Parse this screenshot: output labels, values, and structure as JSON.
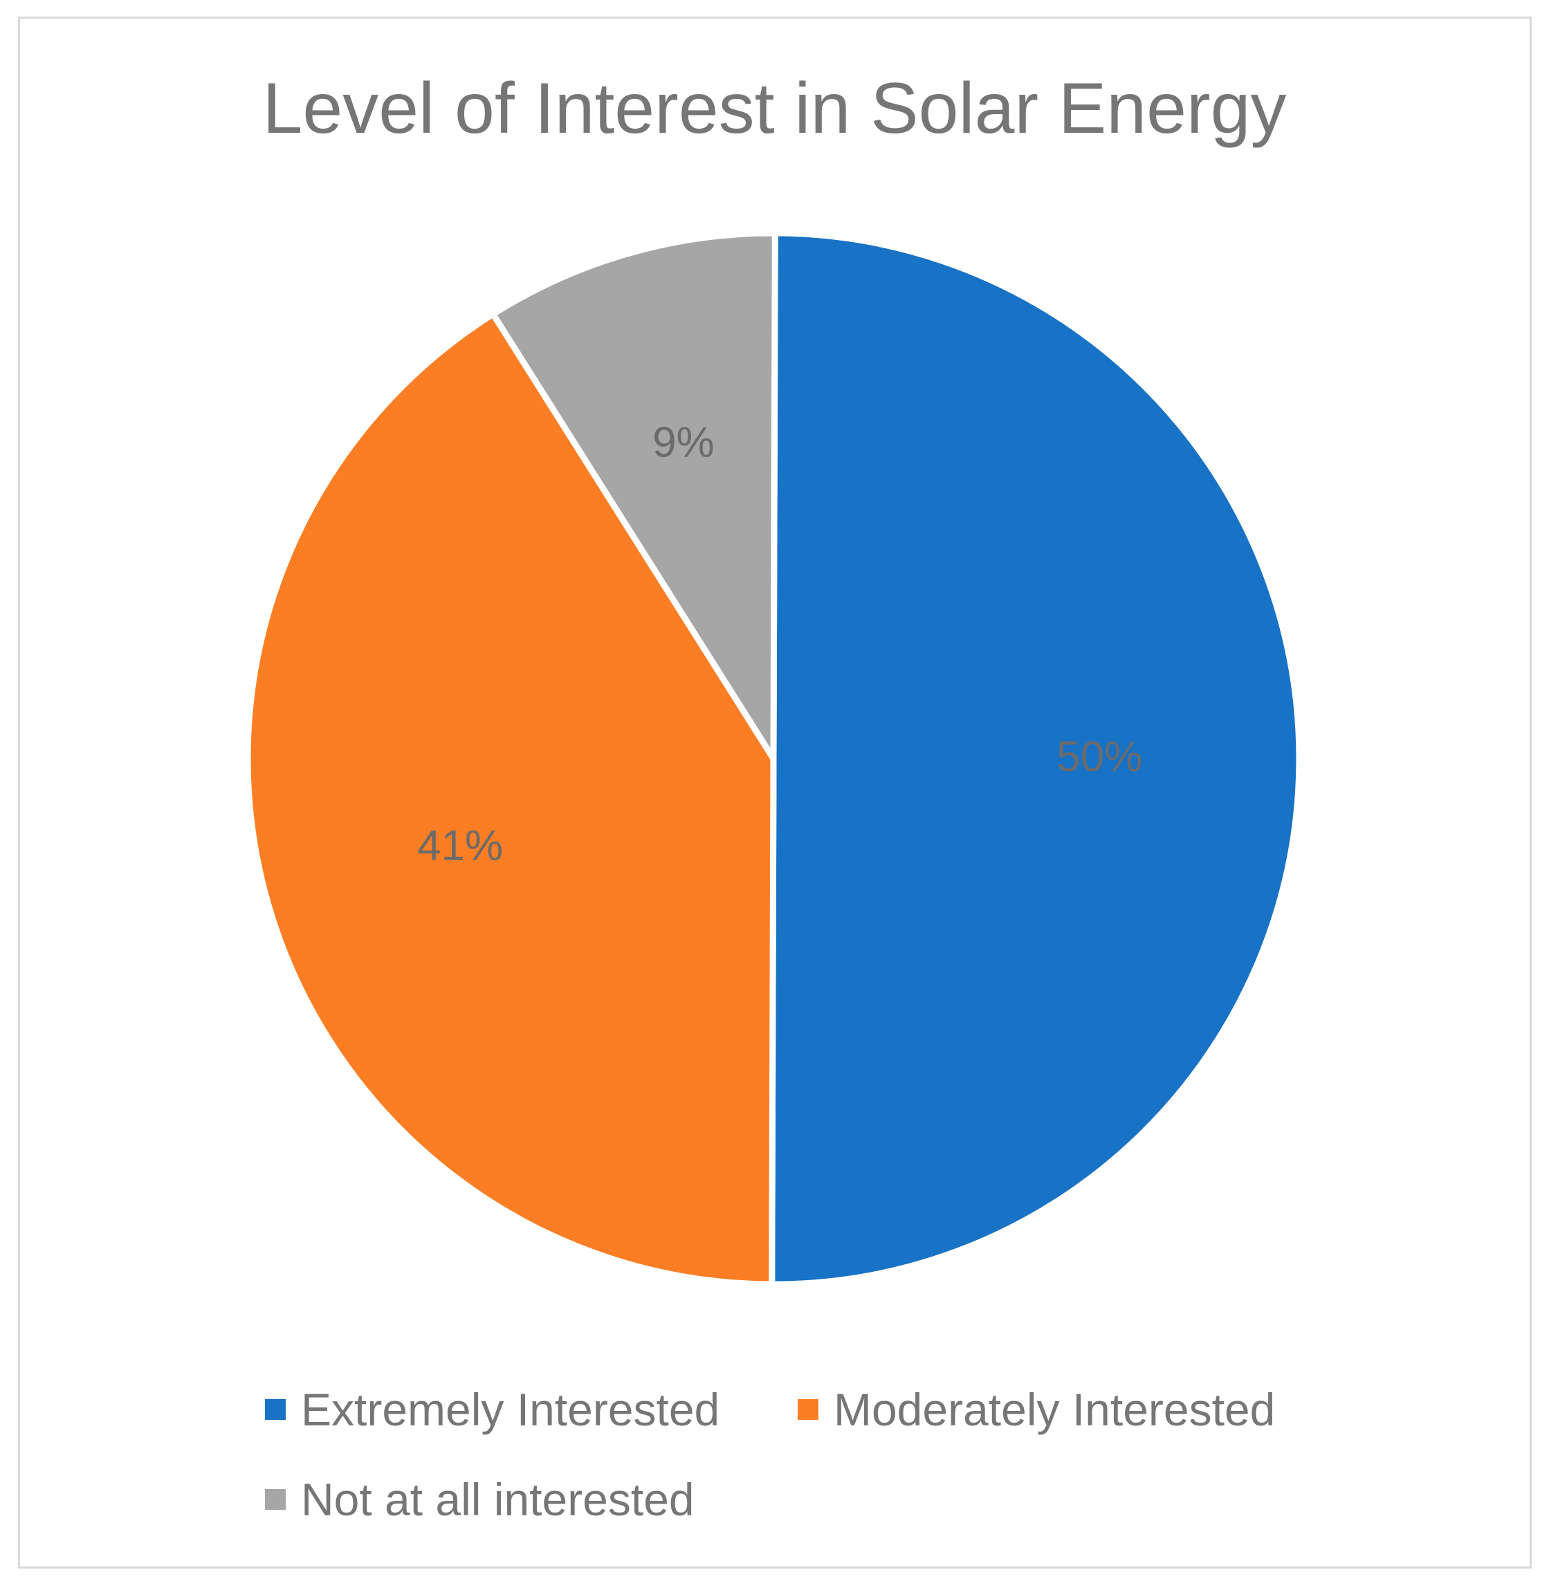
{
  "chart_data": {
    "type": "pie",
    "title": "Level of Interest in Solar Energy",
    "categories": [
      "Extremely Interested",
      "Moderately Interested",
      "Not at all interested"
    ],
    "values": [
      50,
      41,
      9
    ],
    "labels": [
      "50%",
      "41%",
      "9%"
    ],
    "colors": [
      "#1872c6",
      "#fb7e24",
      "#a6a6a6"
    ],
    "legend_position": "bottom",
    "label_color": "#6b6b6b",
    "title_color": "#767676"
  }
}
